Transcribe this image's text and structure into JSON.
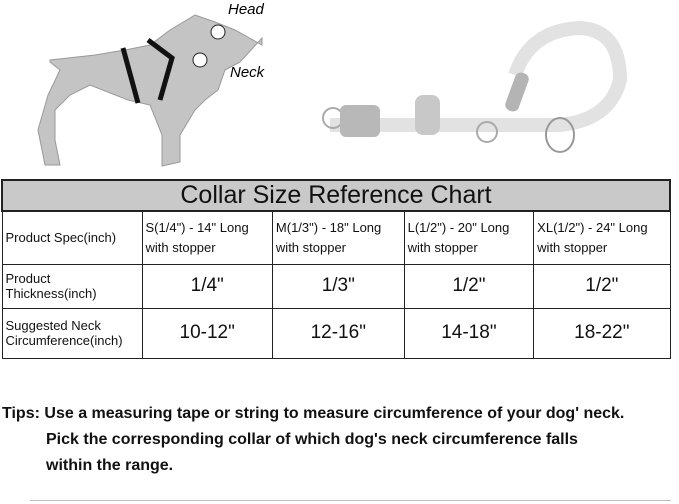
{
  "illustration": {
    "head_label": "Head",
    "neck_label": "Neck"
  },
  "chart": {
    "title": "Collar Size Reference Chart",
    "rows": [
      {
        "label": "Product Spec(inch)",
        "values": [
          "S(1/4\") - 14\" Long with stopper",
          "M(1/3\") - 18\" Long with stopper",
          "L(1/2\") - 20\" Long with stopper",
          "XL(1/2\") - 24\" Long with stopper"
        ]
      },
      {
        "label": "Product Thickness(inch)",
        "values": [
          "1/4\"",
          "1/3\"",
          "1/2\"",
          "1/2\""
        ]
      },
      {
        "label": "Suggested  Neck Circumference(inch)",
        "values": [
          "10-12\"",
          "12-16\"",
          "14-18\"",
          "18-22\""
        ]
      }
    ]
  },
  "tips": {
    "prefix": "Tips:",
    "line1": "Use a measuring tape or string to measure circumference of your dog' neck.",
    "line2": "Pick the corresponding collar of which dog's neck circumference falls",
    "line3": "within the range."
  }
}
